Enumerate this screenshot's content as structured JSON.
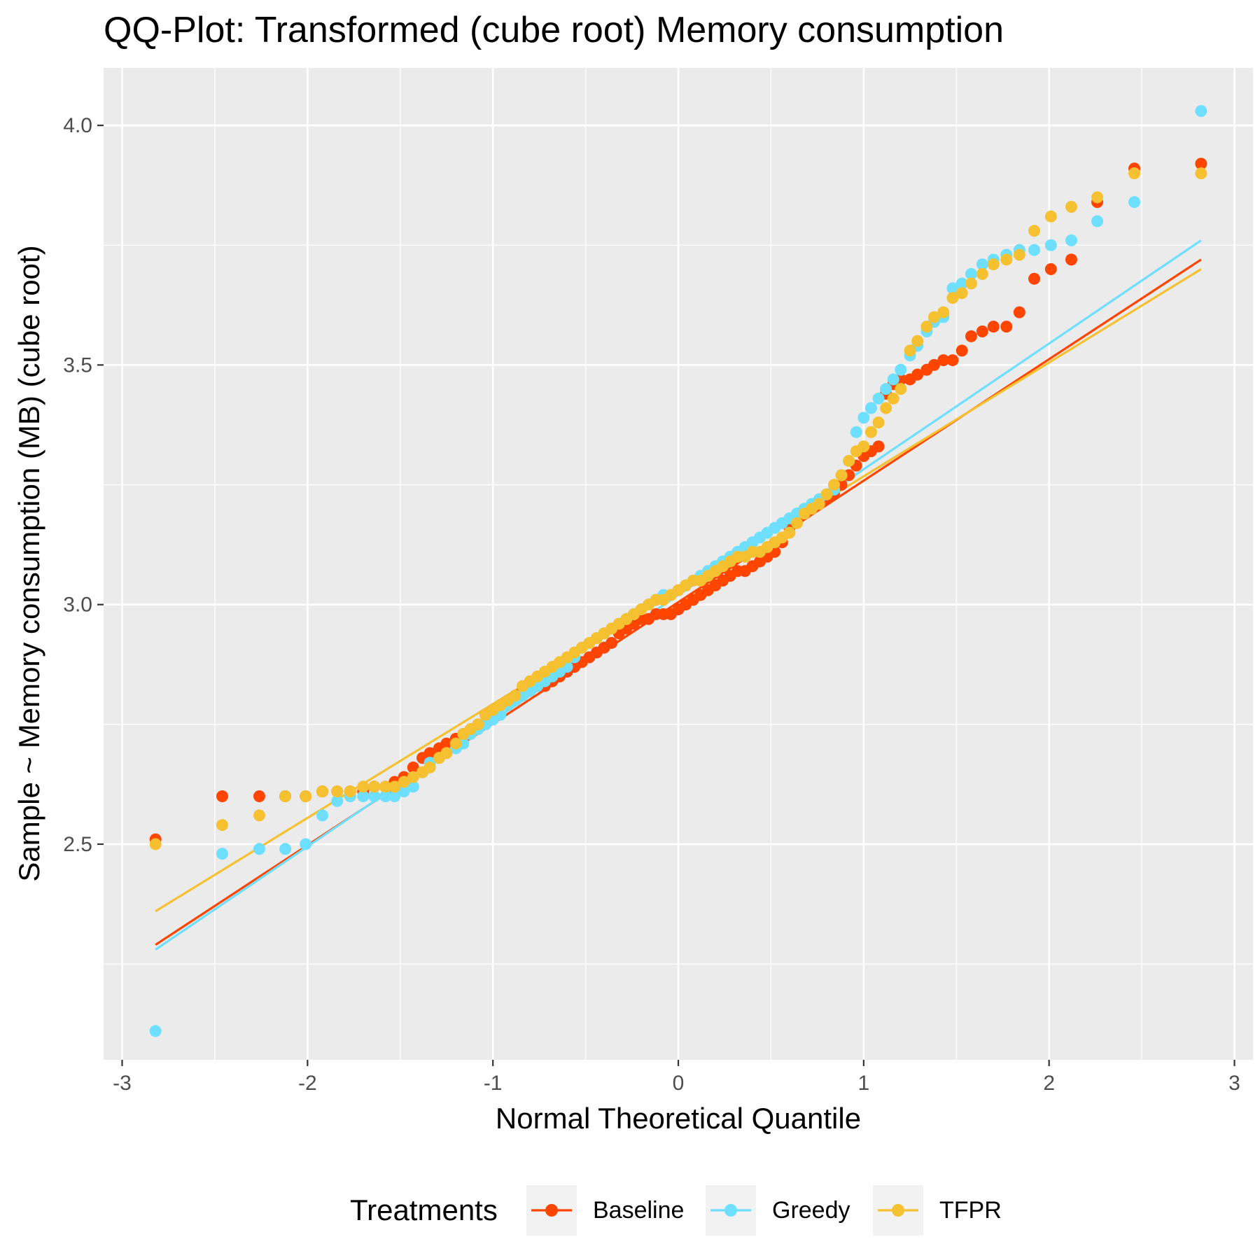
{
  "chart_data": {
    "type": "scatter",
    "title": "QQ-Plot: Transformed (cube root) Memory consumption",
    "xlabel": "Normal Theoretical Quantile",
    "ylabel": "Sample ~ Memory consumption (MB) (cube root)",
    "xlim": [
      -3.1,
      3.1
    ],
    "ylim": [
      2.05,
      4.12
    ],
    "x_ticks": [
      -3,
      -2,
      -1,
      0,
      1,
      2,
      3
    ],
    "x_tick_labels": [
      "-3",
      "-2",
      "-1",
      "0",
      "1",
      "2",
      "3"
    ],
    "y_ticks": [
      2.5,
      3.0,
      3.5,
      4.0
    ],
    "y_tick_labels": [
      "2.5",
      "3.0",
      "3.5",
      "4.0"
    ],
    "grid": true,
    "legend_title": "Treatments",
    "legend_position": "bottom",
    "series": [
      {
        "name": "Baseline",
        "color": "#FF4500",
        "line": [
          [
            -2.82,
            2.29
          ],
          [
            2.82,
            3.72
          ]
        ],
        "points": [
          [
            -2.82,
            2.51
          ],
          [
            -2.46,
            2.6
          ],
          [
            -2.26,
            2.6
          ],
          [
            -2.12,
            2.6
          ],
          [
            -2.01,
            2.6
          ],
          [
            -1.92,
            2.61
          ],
          [
            -1.84,
            2.61
          ],
          [
            -1.77,
            2.61
          ],
          [
            -1.7,
            2.61
          ],
          [
            -1.64,
            2.62
          ],
          [
            -1.58,
            2.62
          ],
          [
            -1.53,
            2.63
          ],
          [
            -1.48,
            2.64
          ],
          [
            -1.43,
            2.66
          ],
          [
            -1.38,
            2.68
          ],
          [
            -1.34,
            2.69
          ],
          [
            -1.29,
            2.7
          ],
          [
            -1.25,
            2.71
          ],
          [
            -1.2,
            2.72
          ],
          [
            -1.16,
            2.73
          ],
          [
            -1.12,
            2.74
          ],
          [
            -1.08,
            2.75
          ],
          [
            -1.04,
            2.77
          ],
          [
            -1.0,
            2.78
          ],
          [
            -0.96,
            2.79
          ],
          [
            -0.92,
            2.8
          ],
          [
            -0.88,
            2.81
          ],
          [
            -0.84,
            2.82
          ],
          [
            -0.8,
            2.82
          ],
          [
            -0.76,
            2.83
          ],
          [
            -0.72,
            2.83
          ],
          [
            -0.68,
            2.84
          ],
          [
            -0.64,
            2.85
          ],
          [
            -0.6,
            2.86
          ],
          [
            -0.56,
            2.87
          ],
          [
            -0.52,
            2.88
          ],
          [
            -0.48,
            2.89
          ],
          [
            -0.44,
            2.9
          ],
          [
            -0.4,
            2.91
          ],
          [
            -0.36,
            2.92
          ],
          [
            -0.32,
            2.94
          ],
          [
            -0.28,
            2.95
          ],
          [
            -0.24,
            2.96
          ],
          [
            -0.2,
            2.97
          ],
          [
            -0.16,
            2.97
          ],
          [
            -0.12,
            2.98
          ],
          [
            -0.08,
            2.98
          ],
          [
            -0.04,
            2.98
          ],
          [
            0.0,
            2.99
          ],
          [
            0.04,
            3.0
          ],
          [
            0.08,
            3.01
          ],
          [
            0.12,
            3.02
          ],
          [
            0.16,
            3.03
          ],
          [
            0.2,
            3.04
          ],
          [
            0.24,
            3.05
          ],
          [
            0.28,
            3.06
          ],
          [
            0.32,
            3.07
          ],
          [
            0.36,
            3.07
          ],
          [
            0.4,
            3.08
          ],
          [
            0.44,
            3.09
          ],
          [
            0.48,
            3.1
          ],
          [
            0.52,
            3.11
          ],
          [
            0.56,
            3.13
          ],
          [
            0.6,
            3.16
          ],
          [
            0.64,
            3.18
          ],
          [
            0.68,
            3.19
          ],
          [
            0.72,
            3.2
          ],
          [
            0.76,
            3.21
          ],
          [
            0.8,
            3.22
          ],
          [
            0.84,
            3.23
          ],
          [
            0.88,
            3.25
          ],
          [
            0.92,
            3.27
          ],
          [
            0.96,
            3.29
          ],
          [
            1.0,
            3.31
          ],
          [
            1.04,
            3.32
          ],
          [
            1.08,
            3.33
          ],
          [
            1.12,
            3.44
          ],
          [
            1.16,
            3.46
          ],
          [
            1.2,
            3.47
          ],
          [
            1.25,
            3.47
          ],
          [
            1.29,
            3.48
          ],
          [
            1.34,
            3.49
          ],
          [
            1.38,
            3.5
          ],
          [
            1.43,
            3.51
          ],
          [
            1.48,
            3.51
          ],
          [
            1.53,
            3.53
          ],
          [
            1.58,
            3.56
          ],
          [
            1.64,
            3.57
          ],
          [
            1.7,
            3.58
          ],
          [
            1.77,
            3.58
          ],
          [
            1.84,
            3.61
          ],
          [
            1.92,
            3.68
          ],
          [
            2.01,
            3.7
          ],
          [
            2.12,
            3.72
          ],
          [
            2.26,
            3.84
          ],
          [
            2.46,
            3.91
          ],
          [
            2.82,
            3.92
          ]
        ]
      },
      {
        "name": "Greedy",
        "color": "#6EDFFF",
        "line": [
          [
            -2.82,
            2.28
          ],
          [
            2.82,
            3.76
          ]
        ],
        "points": [
          [
            -2.82,
            2.11
          ],
          [
            -2.46,
            2.48
          ],
          [
            -2.26,
            2.49
          ],
          [
            -2.12,
            2.49
          ],
          [
            -2.01,
            2.5
          ],
          [
            -1.92,
            2.56
          ],
          [
            -1.84,
            2.59
          ],
          [
            -1.77,
            2.6
          ],
          [
            -1.7,
            2.6
          ],
          [
            -1.64,
            2.6
          ],
          [
            -1.58,
            2.6
          ],
          [
            -1.53,
            2.6
          ],
          [
            -1.48,
            2.61
          ],
          [
            -1.43,
            2.62
          ],
          [
            -1.38,
            2.65
          ],
          [
            -1.34,
            2.67
          ],
          [
            -1.29,
            2.68
          ],
          [
            -1.25,
            2.69
          ],
          [
            -1.2,
            2.7
          ],
          [
            -1.16,
            2.71
          ],
          [
            -1.12,
            2.73
          ],
          [
            -1.08,
            2.74
          ],
          [
            -1.04,
            2.75
          ],
          [
            -1.0,
            2.76
          ],
          [
            -0.96,
            2.77
          ],
          [
            -0.92,
            2.79
          ],
          [
            -0.88,
            2.8
          ],
          [
            -0.84,
            2.81
          ],
          [
            -0.8,
            2.82
          ],
          [
            -0.76,
            2.83
          ],
          [
            -0.72,
            2.84
          ],
          [
            -0.68,
            2.85
          ],
          [
            -0.64,
            2.86
          ],
          [
            -0.6,
            2.87
          ],
          [
            -0.56,
            2.89
          ],
          [
            -0.52,
            2.91
          ],
          [
            -0.48,
            2.92
          ],
          [
            -0.44,
            2.93
          ],
          [
            -0.4,
            2.94
          ],
          [
            -0.36,
            2.95
          ],
          [
            -0.32,
            2.96
          ],
          [
            -0.28,
            2.97
          ],
          [
            -0.24,
            2.98
          ],
          [
            -0.2,
            2.99
          ],
          [
            -0.16,
            3.0
          ],
          [
            -0.12,
            3.01
          ],
          [
            -0.08,
            3.02
          ],
          [
            -0.04,
            3.02
          ],
          [
            0.0,
            3.03
          ],
          [
            0.04,
            3.04
          ],
          [
            0.08,
            3.05
          ],
          [
            0.12,
            3.06
          ],
          [
            0.16,
            3.07
          ],
          [
            0.2,
            3.08
          ],
          [
            0.24,
            3.09
          ],
          [
            0.28,
            3.1
          ],
          [
            0.32,
            3.11
          ],
          [
            0.36,
            3.12
          ],
          [
            0.4,
            3.13
          ],
          [
            0.44,
            3.14
          ],
          [
            0.48,
            3.15
          ],
          [
            0.52,
            3.16
          ],
          [
            0.56,
            3.17
          ],
          [
            0.6,
            3.18
          ],
          [
            0.64,
            3.19
          ],
          [
            0.68,
            3.2
          ],
          [
            0.72,
            3.21
          ],
          [
            0.76,
            3.22
          ],
          [
            0.8,
            3.23
          ],
          [
            0.84,
            3.24
          ],
          [
            0.88,
            3.27
          ],
          [
            0.92,
            3.3
          ],
          [
            0.96,
            3.36
          ],
          [
            1.0,
            3.39
          ],
          [
            1.04,
            3.41
          ],
          [
            1.08,
            3.43
          ],
          [
            1.12,
            3.45
          ],
          [
            1.16,
            3.47
          ],
          [
            1.2,
            3.49
          ],
          [
            1.25,
            3.52
          ],
          [
            1.29,
            3.54
          ],
          [
            1.34,
            3.57
          ],
          [
            1.38,
            3.59
          ],
          [
            1.43,
            3.6
          ],
          [
            1.48,
            3.66
          ],
          [
            1.53,
            3.67
          ],
          [
            1.58,
            3.69
          ],
          [
            1.64,
            3.71
          ],
          [
            1.7,
            3.72
          ],
          [
            1.77,
            3.73
          ],
          [
            1.84,
            3.74
          ],
          [
            1.92,
            3.74
          ],
          [
            2.01,
            3.75
          ],
          [
            2.12,
            3.76
          ],
          [
            2.26,
            3.8
          ],
          [
            2.46,
            3.84
          ],
          [
            2.82,
            4.03
          ]
        ]
      },
      {
        "name": "TFPR",
        "color": "#F5C131",
        "line": [
          [
            -2.82,
            2.36
          ],
          [
            2.82,
            3.7
          ]
        ],
        "points": [
          [
            -2.82,
            2.5
          ],
          [
            -2.46,
            2.54
          ],
          [
            -2.26,
            2.56
          ],
          [
            -2.12,
            2.6
          ],
          [
            -2.01,
            2.6
          ],
          [
            -1.92,
            2.61
          ],
          [
            -1.84,
            2.61
          ],
          [
            -1.77,
            2.61
          ],
          [
            -1.7,
            2.62
          ],
          [
            -1.64,
            2.62
          ],
          [
            -1.58,
            2.62
          ],
          [
            -1.53,
            2.62
          ],
          [
            -1.48,
            2.63
          ],
          [
            -1.43,
            2.64
          ],
          [
            -1.38,
            2.65
          ],
          [
            -1.34,
            2.66
          ],
          [
            -1.29,
            2.68
          ],
          [
            -1.25,
            2.69
          ],
          [
            -1.2,
            2.71
          ],
          [
            -1.16,
            2.73
          ],
          [
            -1.12,
            2.74
          ],
          [
            -1.08,
            2.75
          ],
          [
            -1.04,
            2.77
          ],
          [
            -1.0,
            2.78
          ],
          [
            -0.96,
            2.79
          ],
          [
            -0.92,
            2.8
          ],
          [
            -0.88,
            2.81
          ],
          [
            -0.84,
            2.83
          ],
          [
            -0.8,
            2.84
          ],
          [
            -0.76,
            2.85
          ],
          [
            -0.72,
            2.86
          ],
          [
            -0.68,
            2.87
          ],
          [
            -0.64,
            2.88
          ],
          [
            -0.6,
            2.89
          ],
          [
            -0.56,
            2.9
          ],
          [
            -0.52,
            2.91
          ],
          [
            -0.48,
            2.92
          ],
          [
            -0.44,
            2.93
          ],
          [
            -0.4,
            2.94
          ],
          [
            -0.36,
            2.95
          ],
          [
            -0.32,
            2.96
          ],
          [
            -0.28,
            2.97
          ],
          [
            -0.24,
            2.98
          ],
          [
            -0.2,
            2.99
          ],
          [
            -0.16,
            3.0
          ],
          [
            -0.12,
            3.01
          ],
          [
            -0.08,
            3.01
          ],
          [
            -0.04,
            3.02
          ],
          [
            0.0,
            3.03
          ],
          [
            0.04,
            3.04
          ],
          [
            0.08,
            3.05
          ],
          [
            0.12,
            3.05
          ],
          [
            0.16,
            3.06
          ],
          [
            0.2,
            3.07
          ],
          [
            0.24,
            3.08
          ],
          [
            0.28,
            3.09
          ],
          [
            0.32,
            3.1
          ],
          [
            0.36,
            3.1
          ],
          [
            0.4,
            3.11
          ],
          [
            0.44,
            3.11
          ],
          [
            0.48,
            3.12
          ],
          [
            0.52,
            3.13
          ],
          [
            0.56,
            3.14
          ],
          [
            0.6,
            3.15
          ],
          [
            0.64,
            3.17
          ],
          [
            0.68,
            3.19
          ],
          [
            0.72,
            3.2
          ],
          [
            0.76,
            3.21
          ],
          [
            0.8,
            3.23
          ],
          [
            0.84,
            3.25
          ],
          [
            0.88,
            3.27
          ],
          [
            0.92,
            3.3
          ],
          [
            0.96,
            3.32
          ],
          [
            1.0,
            3.33
          ],
          [
            1.04,
            3.36
          ],
          [
            1.08,
            3.38
          ],
          [
            1.12,
            3.41
          ],
          [
            1.16,
            3.43
          ],
          [
            1.2,
            3.45
          ],
          [
            1.25,
            3.53
          ],
          [
            1.29,
            3.55
          ],
          [
            1.34,
            3.58
          ],
          [
            1.38,
            3.6
          ],
          [
            1.43,
            3.61
          ],
          [
            1.48,
            3.64
          ],
          [
            1.53,
            3.65
          ],
          [
            1.58,
            3.67
          ],
          [
            1.64,
            3.69
          ],
          [
            1.7,
            3.71
          ],
          [
            1.77,
            3.72
          ],
          [
            1.84,
            3.73
          ],
          [
            1.92,
            3.78
          ],
          [
            2.01,
            3.81
          ],
          [
            2.12,
            3.83
          ],
          [
            2.26,
            3.85
          ],
          [
            2.46,
            3.9
          ],
          [
            2.82,
            3.9
          ]
        ]
      }
    ]
  }
}
